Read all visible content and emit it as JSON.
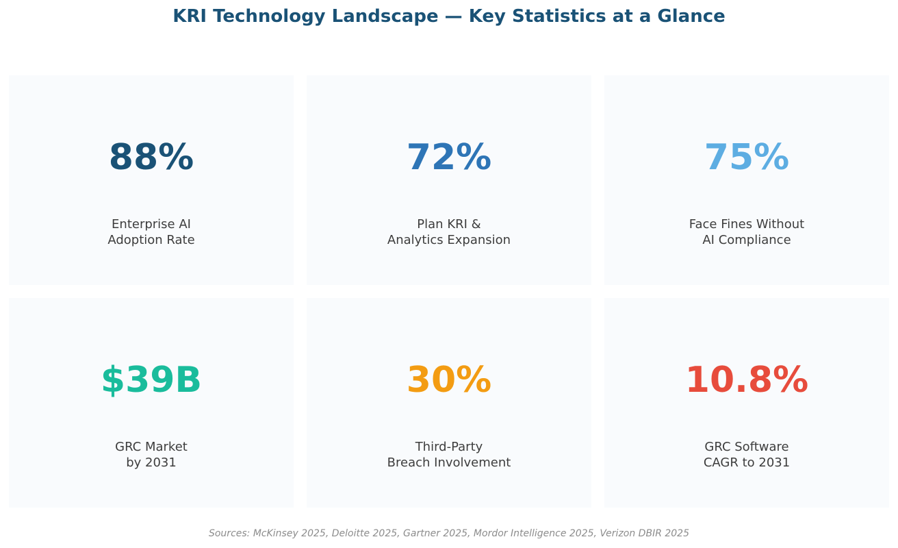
{
  "chart_data": {
    "type": "table",
    "title": "KRI Technology Landscape — Key Statistics at a Glance",
    "stats": [
      {
        "value": "88%",
        "label_lines": [
          "Enterprise AI",
          "Adoption Rate"
        ],
        "color": "#1a5276"
      },
      {
        "value": "72%",
        "label_lines": [
          "Plan KRI &",
          "Analytics Expansion"
        ],
        "color": "#2e75b6"
      },
      {
        "value": "75%",
        "label_lines": [
          "Face Fines Without",
          "AI Compliance"
        ],
        "color": "#5dade2"
      },
      {
        "value": "$39B",
        "label_lines": [
          "GRC Market",
          "by 2031"
        ],
        "color": "#1abc9c"
      },
      {
        "value": "30%",
        "label_lines": [
          "Third-Party",
          "Breach Involvement"
        ],
        "color": "#f39c12"
      },
      {
        "value": "10.8%",
        "label_lines": [
          "GRC Software",
          "CAGR to 2031"
        ],
        "color": "#e74c3c"
      }
    ],
    "source": "Sources: McKinsey 2025, Deloitte 2025, Gartner 2025, Mordor Intelligence 2025, Verizon DBIR 2025"
  }
}
